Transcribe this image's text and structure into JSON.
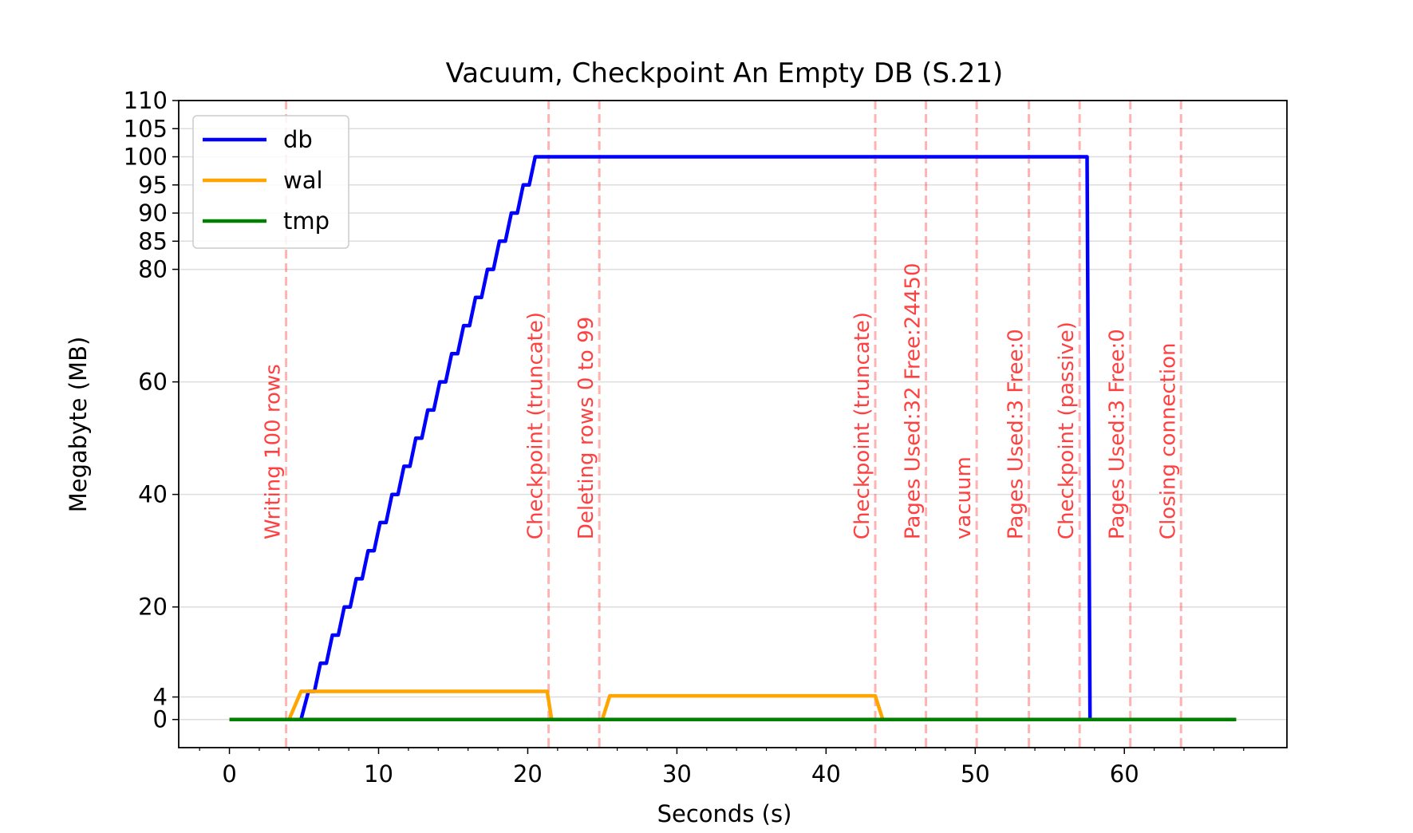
{
  "chart_data": {
    "type": "line",
    "title": "Vacuum, Checkpoint An Empty DB (S.21)",
    "xlabel": "Seconds (s)",
    "ylabel": "Megabyte (MB)",
    "xlim": [
      -3.4,
      70.9
    ],
    "ylim": [
      -5,
      110
    ],
    "xticks": [
      0,
      10,
      20,
      30,
      40,
      50,
      60
    ],
    "yticks": [
      0,
      4,
      20,
      40,
      60,
      80,
      85,
      90,
      95,
      100,
      105,
      110
    ],
    "grid": "horizontal",
    "legend": "top-left",
    "series": [
      {
        "name": "db",
        "color": "#0000ff",
        "points": [
          [
            0,
            0
          ],
          [
            4.8,
            0
          ],
          [
            5.3,
            5
          ],
          [
            5.7,
            5
          ],
          [
            6.1,
            10
          ],
          [
            6.5,
            10
          ],
          [
            6.9,
            15
          ],
          [
            7.3,
            15
          ],
          [
            7.7,
            20
          ],
          [
            8.1,
            20
          ],
          [
            8.5,
            25
          ],
          [
            8.9,
            25
          ],
          [
            9.3,
            30
          ],
          [
            9.7,
            30
          ],
          [
            10.1,
            35
          ],
          [
            10.5,
            35
          ],
          [
            10.9,
            40
          ],
          [
            11.3,
            40
          ],
          [
            11.7,
            45
          ],
          [
            12.1,
            45
          ],
          [
            12.5,
            50
          ],
          [
            12.9,
            50
          ],
          [
            13.3,
            55
          ],
          [
            13.7,
            55
          ],
          [
            14.1,
            60
          ],
          [
            14.5,
            60
          ],
          [
            14.9,
            65
          ],
          [
            15.3,
            65
          ],
          [
            15.7,
            70
          ],
          [
            16.1,
            70
          ],
          [
            16.5,
            75
          ],
          [
            16.9,
            75
          ],
          [
            17.3,
            80
          ],
          [
            17.7,
            80
          ],
          [
            18.1,
            85
          ],
          [
            18.5,
            85
          ],
          [
            18.9,
            90
          ],
          [
            19.3,
            90
          ],
          [
            19.7,
            95
          ],
          [
            20.1,
            95
          ],
          [
            20.5,
            100
          ],
          [
            57.5,
            100
          ],
          [
            57.7,
            0
          ],
          [
            67.5,
            0
          ]
        ]
      },
      {
        "name": "wal",
        "color": "#ffa500",
        "points": [
          [
            0,
            0
          ],
          [
            4.0,
            0
          ],
          [
            4.8,
            5
          ],
          [
            21.3,
            5
          ],
          [
            21.6,
            0
          ],
          [
            25.0,
            0
          ],
          [
            25.5,
            4.2
          ],
          [
            43.3,
            4.2
          ],
          [
            43.8,
            0
          ],
          [
            67.5,
            0
          ]
        ]
      },
      {
        "name": "tmp",
        "color": "#008000",
        "points": [
          [
            0,
            0
          ],
          [
            67.5,
            0
          ]
        ]
      }
    ],
    "events": [
      {
        "x": 3.8,
        "label": "Writing 100 rows"
      },
      {
        "x": 21.4,
        "label": "Checkpoint (truncate)"
      },
      {
        "x": 24.8,
        "label": "Deleting rows 0 to 99"
      },
      {
        "x": 43.3,
        "label": "Checkpoint (truncate)"
      },
      {
        "x": 46.7,
        "label": "Pages Used:32 Free:24450"
      },
      {
        "x": 50.1,
        "label": "vacuum"
      },
      {
        "x": 53.6,
        "label": "Pages Used:3 Free:0"
      },
      {
        "x": 57.0,
        "label": "Checkpoint (passive)"
      },
      {
        "x": 60.4,
        "label": "Pages Used:3 Free:0"
      },
      {
        "x": 63.8,
        "label": "Closing connection"
      }
    ],
    "event_color": "#ff0000"
  }
}
